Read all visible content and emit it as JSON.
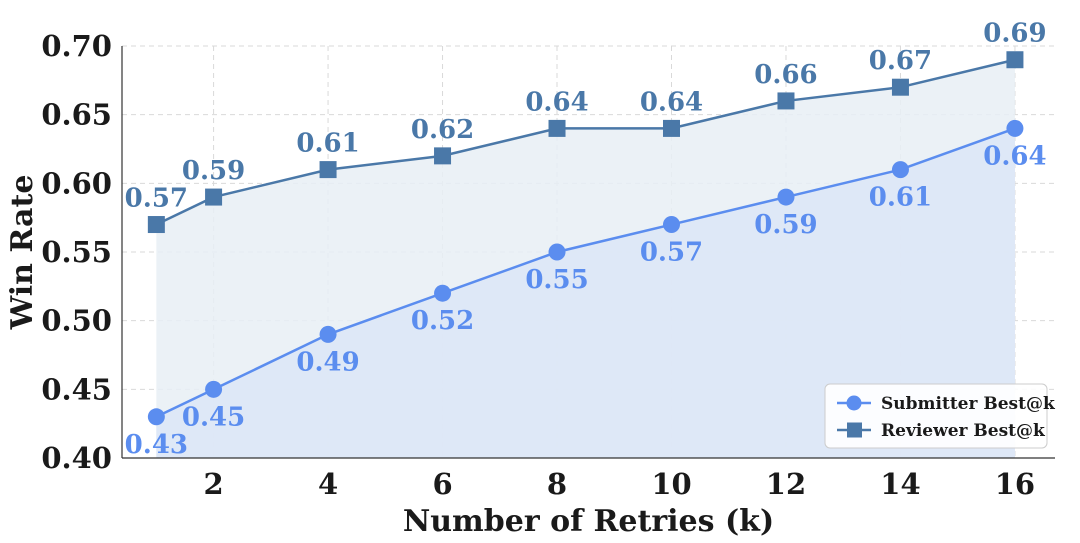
{
  "chart_data": {
    "type": "line",
    "title": "",
    "xlabel": "Number of Retries (k)",
    "ylabel": "Win Rate",
    "xlim": [
      0.4,
      16.7
    ],
    "ylim": [
      0.4,
      0.7
    ],
    "xticks": [
      2,
      4,
      6,
      8,
      10,
      12,
      14,
      16
    ],
    "yticks": [
      0.4,
      0.45,
      0.5,
      0.55,
      0.6,
      0.65,
      0.7
    ],
    "xtick_labels": [
      "2",
      "4",
      "6",
      "8",
      "10",
      "12",
      "14",
      "16"
    ],
    "ytick_labels": [
      "0.40",
      "0.45",
      "0.50",
      "0.55",
      "0.60",
      "0.65",
      "0.70"
    ],
    "grid": true,
    "legend_position": "bottom-right",
    "x": [
      1,
      2,
      4,
      6,
      8,
      10,
      12,
      14,
      16
    ],
    "series": [
      {
        "name": "Submitter Best@k",
        "marker": "circle",
        "color": "#5b8def",
        "fill": "#dce6f7",
        "label_position": "below",
        "values": [
          0.43,
          0.45,
          0.49,
          0.52,
          0.55,
          0.57,
          0.59,
          0.61,
          0.64
        ],
        "labels": [
          "0.43",
          "0.45",
          "0.49",
          "0.52",
          "0.55",
          "0.57",
          "0.59",
          "0.61",
          "0.64"
        ]
      },
      {
        "name": "Reviewer Best@k",
        "marker": "square",
        "color": "#4a78a8",
        "fill": "#e8eef5",
        "label_position": "above",
        "values": [
          0.57,
          0.59,
          0.61,
          0.62,
          0.64,
          0.64,
          0.66,
          0.67,
          0.69
        ],
        "labels": [
          "0.57",
          "0.59",
          "0.61",
          "0.62",
          "0.64",
          "0.64",
          "0.66",
          "0.67",
          "0.69"
        ]
      }
    ]
  }
}
